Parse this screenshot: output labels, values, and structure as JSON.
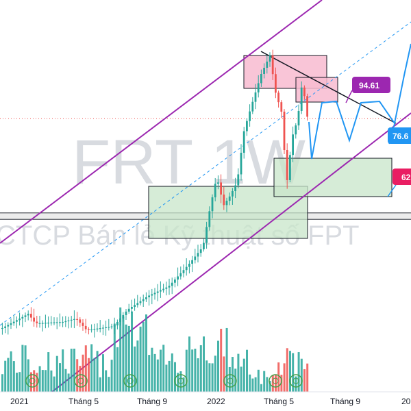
{
  "chart_data": {
    "type": "candlestick",
    "symbol": "FRT",
    "interval": "1W",
    "company": "CTCP Bán lẻ Kỹ thuật số FPT",
    "x_ticks": [
      "2021",
      "Tháng 5",
      "Tháng 9",
      "2022",
      "Tháng 5",
      "Tháng 9",
      "20"
    ],
    "price_labels": [
      {
        "text": "94.61",
        "value": 94.61,
        "color": "#9c27b0"
      },
      {
        "text": "76.6",
        "value": 76.6,
        "color": "#2196f3"
      },
      {
        "text": "62",
        "value": 62,
        "color": "#e91e63"
      }
    ],
    "colors": {
      "up": "#26a69a",
      "down": "#ef5350",
      "channel": "#9c27b0",
      "forecast": "#2196f3",
      "supply_zone": "#f8bbd0",
      "demand_zone": "#c8e6c9"
    },
    "icons": [
      "dividend-marker-icon"
    ]
  }
}
